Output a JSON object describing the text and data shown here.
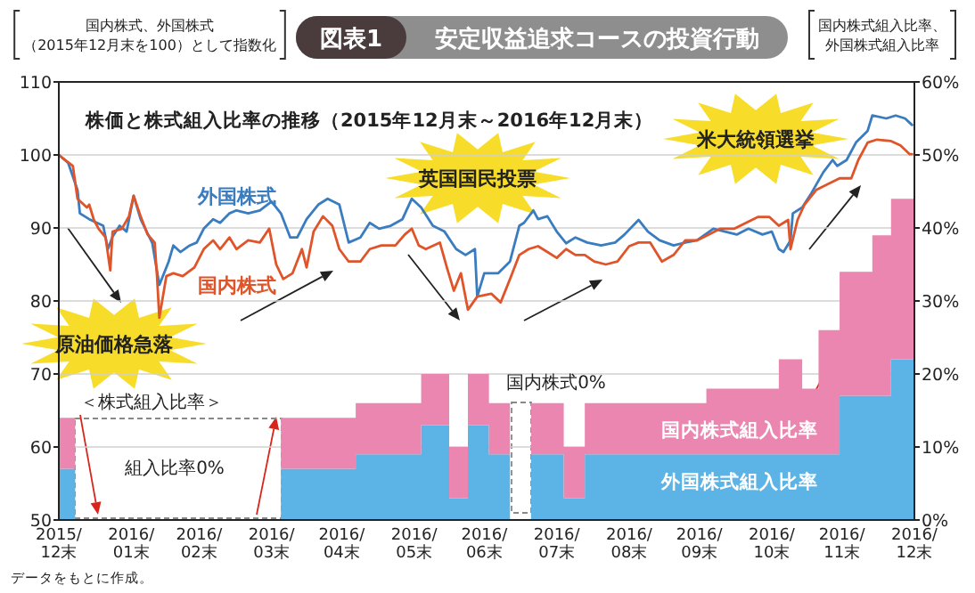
{
  "chart_data": {
    "type": "line",
    "title": "安定収益追求コースの投資行動",
    "subtitle": "株価と株式組入比率の推移（2015年12月末～2016年12月末）",
    "ylabel": "国内株式、外国株式（2015年12月末を100）として指数化",
    "y2label": "国内株式組入比率、外国株式組入比率",
    "annotations": [
      "図表1",
      "原油価格急落",
      "英国国民投票",
      "米大統領選挙",
      "＜株式組入比率＞",
      "組入比率0%",
      "国内株式0%",
      "データをもとに作成。"
    ],
    "xlim": [
      "2015-12-31",
      "2016-12-31"
    ],
    "xticks": [
      {
        "value": "2015-12-31",
        "label": "2015/12末"
      },
      {
        "value": "2016-01-31",
        "label": "2016/01末"
      },
      {
        "value": "2016-02-29",
        "label": "2016/02末"
      },
      {
        "value": "2016-03-31",
        "label": "2016/03末"
      },
      {
        "value": "2016-04-30",
        "label": "2016/04末"
      },
      {
        "value": "2016-05-31",
        "label": "2016/05末"
      },
      {
        "value": "2016-06-30",
        "label": "2016/06末"
      },
      {
        "value": "2016-07-31",
        "label": "2016/07末"
      },
      {
        "value": "2016-08-31",
        "label": "2016/08末"
      },
      {
        "value": "2016-09-30",
        "label": "2016/09末"
      },
      {
        "value": "2016-10-31",
        "label": "2016/10末"
      },
      {
        "value": "2016-11-30",
        "label": "2016/11末"
      },
      {
        "value": "2016-12-31",
        "label": "2016/12末"
      }
    ],
    "ylim": [
      50,
      110
    ],
    "yticks": [
      50,
      60,
      70,
      80,
      90,
      100,
      110
    ],
    "y2lim": [
      0,
      60
    ],
    "y2ticks": [
      {
        "value": 0,
        "label": "0%"
      },
      {
        "value": 10,
        "label": "10%"
      },
      {
        "value": 20,
        "label": "20%"
      },
      {
        "value": 30,
        "label": "30%"
      },
      {
        "value": 40,
        "label": "40%"
      },
      {
        "value": 50,
        "label": "50%"
      },
      {
        "value": 60,
        "label": "60%"
      }
    ],
    "grid": "y",
    "stacked": true,
    "series": [
      {
        "name": "外国株式",
        "type": "line",
        "color": "#3a7cc0",
        "x": [
          "2015-12-31",
          "2016-01-04",
          "2016-01-08",
          "2016-01-09",
          "2016-01-13",
          "2016-01-19",
          "2016-01-21",
          "2016-01-23",
          "2016-01-26",
          "2016-01-29",
          "2016-02-01",
          "2016-02-04",
          "2016-02-09",
          "2016-02-12",
          "2016-02-16",
          "2016-02-18",
          "2016-02-21",
          "2016-02-25",
          "2016-02-28",
          "2016-03-02",
          "2016-03-06",
          "2016-03-09",
          "2016-03-13",
          "2016-03-16",
          "2016-03-21",
          "2016-03-26",
          "2016-03-31",
          "2016-04-04",
          "2016-04-08",
          "2016-04-11",
          "2016-04-15",
          "2016-04-20",
          "2016-04-24",
          "2016-04-29",
          "2016-05-03",
          "2016-05-08",
          "2016-05-12",
          "2016-05-16",
          "2016-05-21",
          "2016-05-26",
          "2016-05-30",
          "2016-06-03",
          "2016-06-08",
          "2016-06-13",
          "2016-06-18",
          "2016-06-22",
          "2016-06-26",
          "2016-06-27",
          "2016-06-30",
          "2016-07-06",
          "2016-07-11",
          "2016-07-15",
          "2016-07-17",
          "2016-07-21",
          "2016-07-23",
          "2016-07-27",
          "2016-07-31",
          "2016-08-04",
          "2016-08-08",
          "2016-08-13",
          "2016-08-19",
          "2016-08-25",
          "2016-08-29",
          "2016-09-04",
          "2016-09-08",
          "2016-09-13",
          "2016-09-19",
          "2016-09-24",
          "2016-09-29",
          "2016-10-06",
          "2016-10-11",
          "2016-10-16",
          "2016-10-21",
          "2016-10-27",
          "2016-10-31",
          "2016-11-03",
          "2016-11-05",
          "2016-11-08",
          "2016-11-09",
          "2016-11-13",
          "2016-11-17",
          "2016-11-22",
          "2016-11-26",
          "2016-11-28",
          "2016-12-02",
          "2016-12-06",
          "2016-12-11",
          "2016-12-13",
          "2016-12-19",
          "2016-12-23",
          "2016-12-27",
          "2016-12-30"
        ],
        "values": [
          100,
          98.9,
          95.2,
          92,
          91.2,
          90.3,
          87.1,
          88.8,
          90.3,
          89.5,
          94.4,
          91.2,
          87.9,
          82.2,
          85.4,
          87.6,
          86.7,
          87.6,
          88,
          89.9,
          91.2,
          90.7,
          92,
          92.4,
          92,
          92.4,
          93.6,
          92,
          88.7,
          88.7,
          91.2,
          93.2,
          94,
          93.2,
          88,
          88.7,
          90.7,
          89.9,
          90.3,
          91.2,
          94,
          92.8,
          90.3,
          89.5,
          87.1,
          86.3,
          87.1,
          80.6,
          83.8,
          83.8,
          85.4,
          90.3,
          90.7,
          92.4,
          91.2,
          91.6,
          89.5,
          87.9,
          88.7,
          88,
          87.6,
          88,
          89.1,
          91.1,
          89.5,
          88.3,
          87.6,
          88,
          88.3,
          89.9,
          89.5,
          89.1,
          89.9,
          89.1,
          89.5,
          87.1,
          86.7,
          88.3,
          92,
          92.8,
          94.8,
          97.6,
          99.3,
          98.5,
          99.3,
          101.7,
          103.3,
          105.4,
          105,
          105.4,
          105,
          104.1
        ]
      },
      {
        "name": "国内株式",
        "type": "line",
        "color": "#e0542a",
        "x": [
          "2015-12-31",
          "2016-01-06",
          "2016-01-08",
          "2016-01-12",
          "2016-01-13",
          "2016-01-15",
          "2016-01-17",
          "2016-01-20",
          "2016-01-22",
          "2016-01-23",
          "2016-01-27",
          "2016-01-30",
          "2016-02-01",
          "2016-02-04",
          "2016-02-07",
          "2016-02-10",
          "2016-02-11",
          "2016-02-12",
          "2016-02-15",
          "2016-02-18",
          "2016-02-22",
          "2016-02-27",
          "2016-03-02",
          "2016-03-06",
          "2016-03-09",
          "2016-03-13",
          "2016-03-16",
          "2016-03-21",
          "2016-03-26",
          "2016-03-30",
          "2016-04-02",
          "2016-04-05",
          "2016-04-09",
          "2016-04-13",
          "2016-04-15",
          "2016-04-18",
          "2016-04-22",
          "2016-04-26",
          "2016-04-29",
          "2016-05-03",
          "2016-05-08",
          "2016-05-12",
          "2016-05-17",
          "2016-05-23",
          "2016-05-27",
          "2016-05-30",
          "2016-06-02",
          "2016-06-05",
          "2016-06-11",
          "2016-06-14",
          "2016-06-17",
          "2016-06-20",
          "2016-06-23",
          "2016-06-27",
          "2016-07-03",
          "2016-07-07",
          "2016-07-11",
          "2016-07-15",
          "2016-07-19",
          "2016-07-23",
          "2016-07-27",
          "2016-07-31",
          "2016-08-04",
          "2016-08-08",
          "2016-08-12",
          "2016-08-16",
          "2016-08-21",
          "2016-08-26",
          "2016-08-31",
          "2016-09-04",
          "2016-09-09",
          "2016-09-14",
          "2016-09-19",
          "2016-09-24",
          "2016-09-29",
          "2016-10-04",
          "2016-10-09",
          "2016-10-15",
          "2016-10-20",
          "2016-10-25",
          "2016-10-30",
          "2016-11-03",
          "2016-11-07",
          "2016-11-08",
          "2016-11-11",
          "2016-11-14",
          "2016-11-19",
          "2016-11-24",
          "2016-11-29",
          "2016-12-04",
          "2016-12-07",
          "2016-12-11",
          "2016-12-15",
          "2016-12-21",
          "2016-12-25",
          "2016-12-29",
          "2016-12-30"
        ],
        "values": [
          100,
          98.5,
          94,
          92.8,
          93.2,
          91.1,
          89.9,
          88.7,
          84.2,
          89.5,
          89.9,
          91.6,
          94.4,
          91.6,
          89.1,
          88,
          83.4,
          77.7,
          83.4,
          83.8,
          83.4,
          84.6,
          87.1,
          88.3,
          87.1,
          88.7,
          87.1,
          88.3,
          88,
          89.9,
          85,
          83,
          83.8,
          87.1,
          84.6,
          89.5,
          91.6,
          90.3,
          87.1,
          85.4,
          85.4,
          87.1,
          87.6,
          87.6,
          89.1,
          89.9,
          87.6,
          87.1,
          88,
          84.6,
          81.4,
          83.8,
          78.8,
          80.6,
          81,
          79.8,
          83,
          86.3,
          87.1,
          87.5,
          86.7,
          85.9,
          87.1,
          86.3,
          86.3,
          85.4,
          85,
          85.4,
          87.5,
          88,
          88,
          85.4,
          86.3,
          88.3,
          88.3,
          89.1,
          89.9,
          89.9,
          90.7,
          91.5,
          91.5,
          90.3,
          91.1,
          87.1,
          91.1,
          93.2,
          95.2,
          96,
          96.8,
          96.8,
          99.3,
          101.7,
          102.1,
          101.9,
          101.3,
          100.1,
          100.1
        ]
      },
      {
        "name": "外国株式組入比率",
        "type": "area",
        "axis": "y2",
        "color": "#5bb4e5",
        "x": [
          "2015-12-31",
          "2016-01-07",
          "2016-01-07",
          "2016-04-04",
          "2016-04-04",
          "2016-05-06",
          "2016-05-06",
          "2016-06-03",
          "2016-06-03",
          "2016-06-15",
          "2016-06-15",
          "2016-06-23",
          "2016-06-23",
          "2016-07-02",
          "2016-07-02",
          "2016-07-11",
          "2016-07-11",
          "2016-07-20",
          "2016-07-20",
          "2016-08-03",
          "2016-08-03",
          "2016-08-12",
          "2016-08-12",
          "2016-10-03",
          "2016-10-03",
          "2016-11-03",
          "2016-11-03",
          "2016-11-13",
          "2016-11-13",
          "2016-11-20",
          "2016-11-20",
          "2016-11-29",
          "2016-11-29",
          "2016-12-13",
          "2016-12-13",
          "2016-12-21",
          "2016-12-21",
          "2016-12-31"
        ],
        "values": [
          7,
          7,
          0,
          0,
          7,
          7,
          9,
          9,
          13,
          13,
          3,
          3,
          13,
          13,
          9,
          9,
          0,
          0,
          9,
          9,
          3,
          3,
          9,
          9,
          9,
          9,
          9,
          9,
          9,
          9,
          9,
          9,
          17,
          17,
          17,
          17,
          22,
          22
        ]
      },
      {
        "name": "国内株式組入比率",
        "type": "area",
        "axis": "y2",
        "color": "#ea86b0",
        "x": [
          "2015-12-31",
          "2016-01-07",
          "2016-01-07",
          "2016-04-04",
          "2016-04-04",
          "2016-05-06",
          "2016-05-06",
          "2016-06-03",
          "2016-06-03",
          "2016-06-15",
          "2016-06-15",
          "2016-06-23",
          "2016-06-23",
          "2016-07-02",
          "2016-07-02",
          "2016-07-11",
          "2016-07-11",
          "2016-07-20",
          "2016-07-20",
          "2016-08-03",
          "2016-08-03",
          "2016-08-12",
          "2016-08-12",
          "2016-10-03",
          "2016-10-03",
          "2016-11-03",
          "2016-11-03",
          "2016-11-13",
          "2016-11-13",
          "2016-11-20",
          "2016-11-20",
          "2016-11-29",
          "2016-11-29",
          "2016-12-13",
          "2016-12-13",
          "2016-12-21",
          "2016-12-21",
          "2016-12-31"
        ],
        "values": [
          7,
          7,
          0,
          0,
          7,
          7,
          7,
          7,
          7,
          7,
          7,
          7,
          7,
          7,
          7,
          7,
          0,
          0,
          7,
          7,
          7,
          7,
          7,
          7,
          9,
          9,
          13,
          13,
          9,
          9,
          17,
          17,
          17,
          17,
          22,
          22,
          22,
          22
        ]
      }
    ]
  }
}
